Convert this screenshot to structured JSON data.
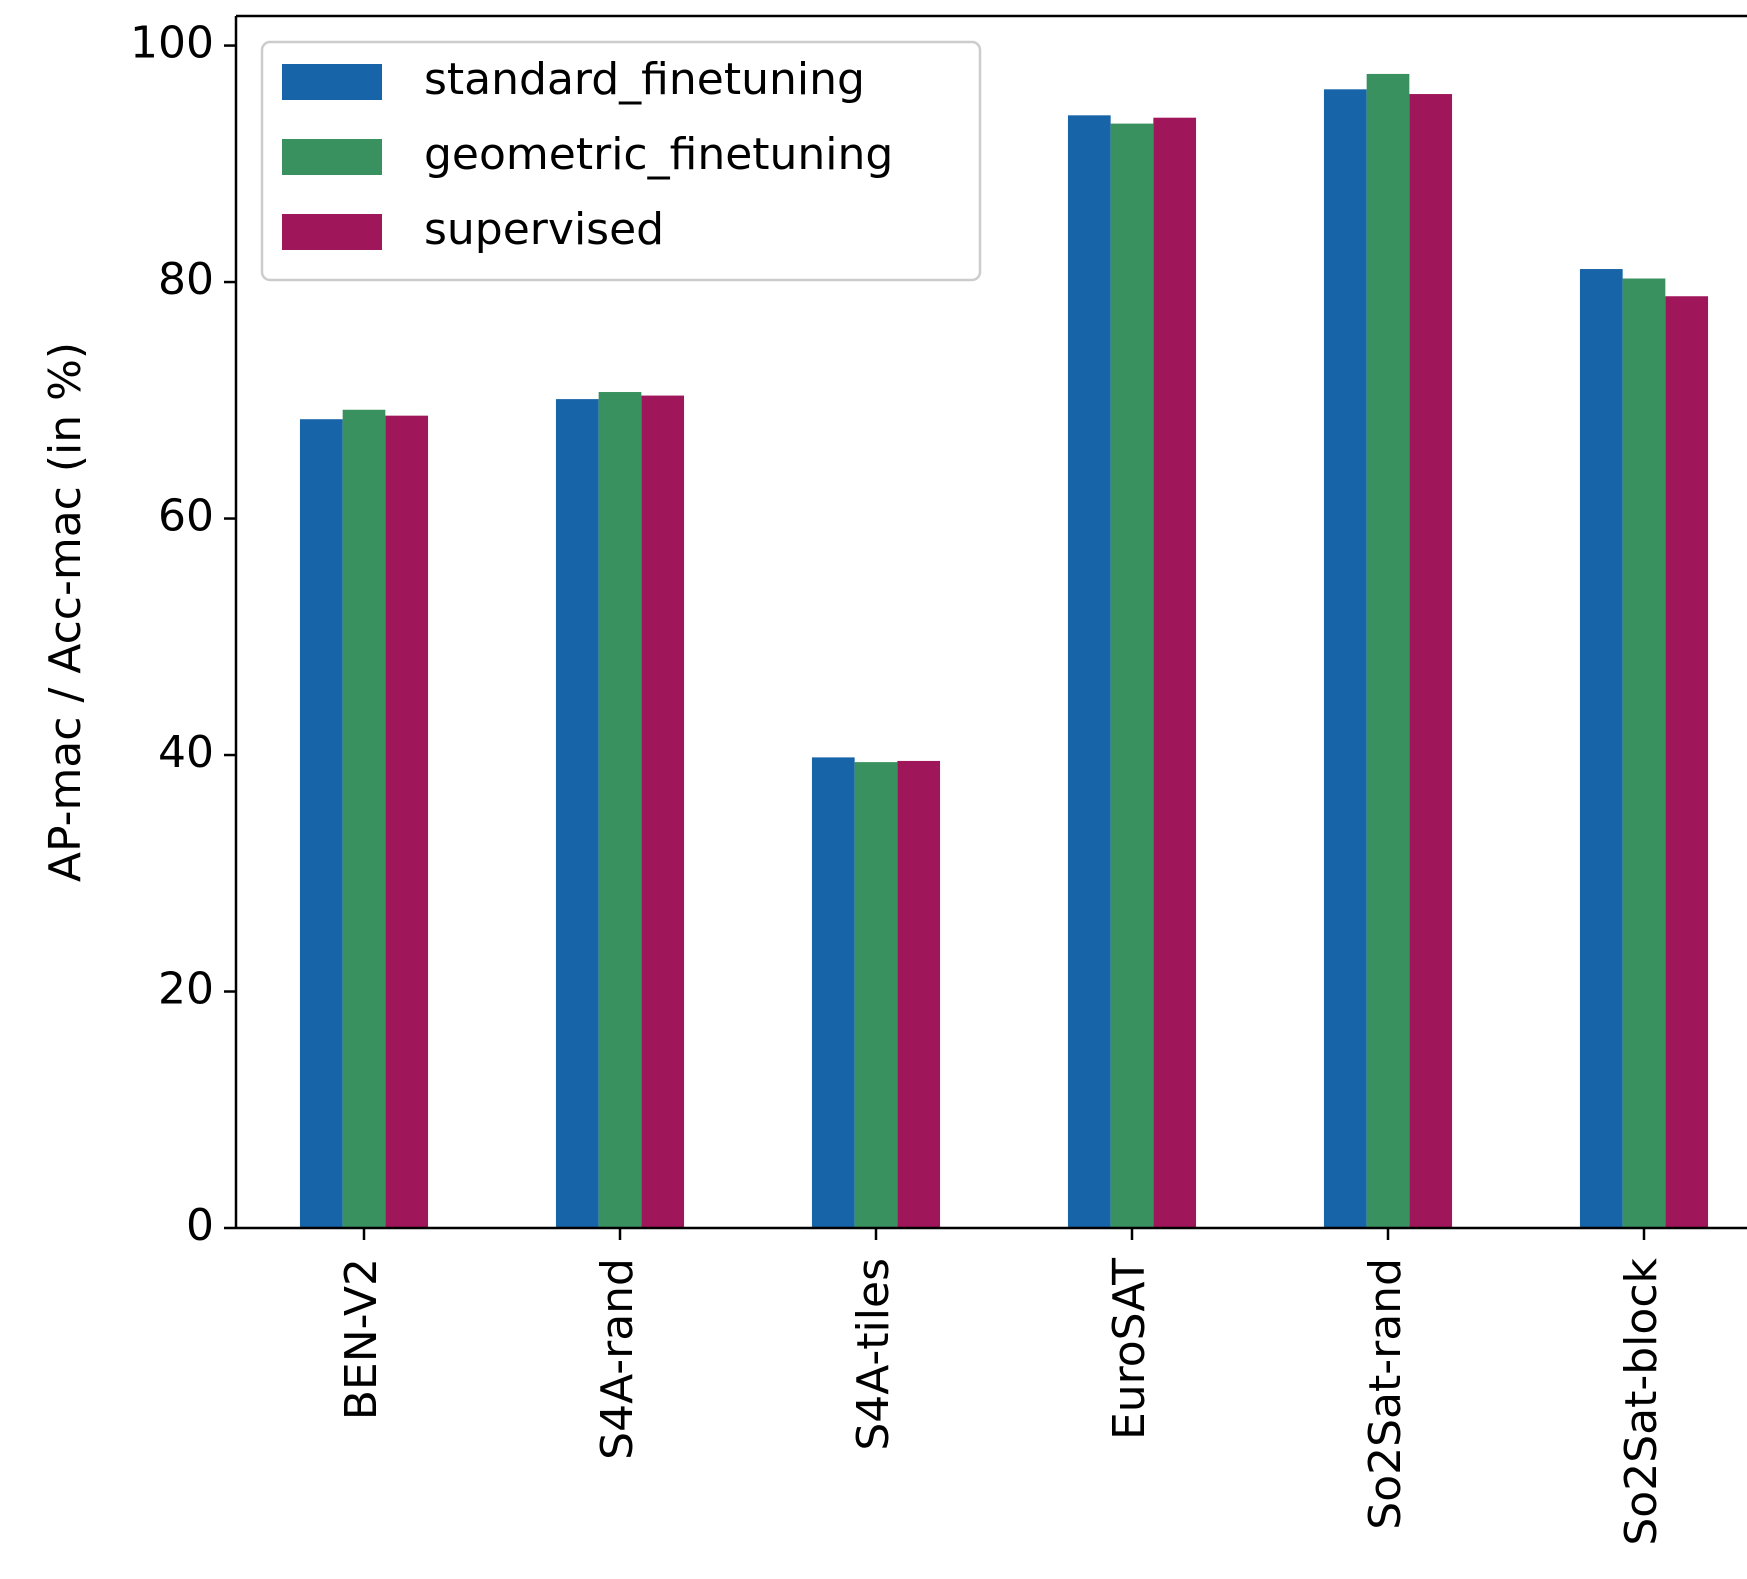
{
  "chart_data": {
    "type": "bar",
    "title": "",
    "xlabel": "",
    "ylabel": "AP-mac / Acc-mac (in %)",
    "ylim": [
      0,
      102.5
    ],
    "yticks": [
      0,
      20,
      40,
      60,
      80,
      100
    ],
    "grid": false,
    "legend_position": "top-left",
    "categories": [
      "BEN-V2",
      "S4A-rand",
      "S4A-tiles",
      "EuroSAT",
      "So2Sat-rand",
      "So2Sat-block"
    ],
    "series": [
      {
        "name": "standard_finetuning",
        "color": "#1764a8",
        "values": [
          68.4,
          70.1,
          39.8,
          94.1,
          96.3,
          81.1
        ]
      },
      {
        "name": "geometric_finetuning",
        "color": "#3a9160",
        "values": [
          69.2,
          70.7,
          39.4,
          93.4,
          97.6,
          80.3
        ]
      },
      {
        "name": "supervised",
        "color": "#a0165a",
        "values": [
          68.7,
          70.4,
          39.5,
          93.9,
          95.9,
          78.8
        ]
      }
    ]
  }
}
